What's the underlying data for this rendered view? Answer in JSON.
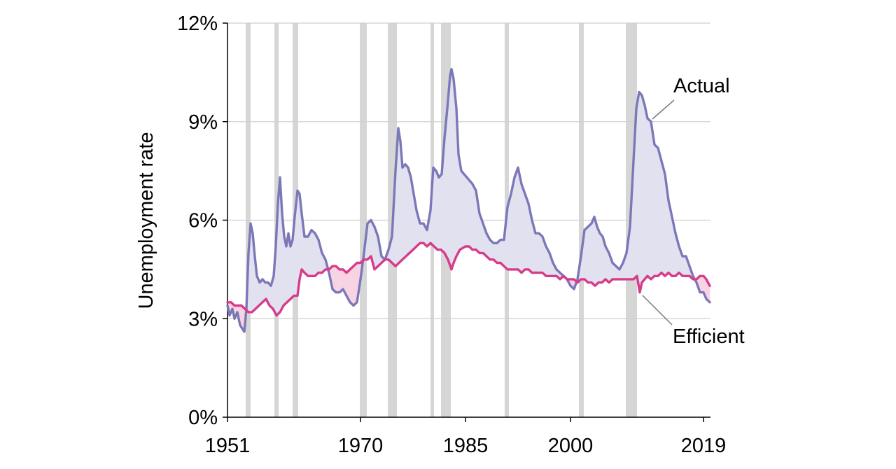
{
  "chart_data": {
    "type": "line",
    "title": "",
    "xlabel": "",
    "ylabel": "Unemployment rate",
    "xlim": [
      1951,
      2020
    ],
    "ylim": [
      0,
      12
    ],
    "x_ticks": [
      1951,
      1970,
      1985,
      2000,
      2019
    ],
    "y_ticks": [
      {
        "value": 0,
        "label": "0%"
      },
      {
        "value": 3,
        "label": "3%"
      },
      {
        "value": 6,
        "label": "6%"
      },
      {
        "value": 9,
        "label": "9%"
      },
      {
        "value": 12,
        "label": "12%"
      }
    ],
    "grid": "horizontal",
    "recessions": [
      [
        1953.6,
        1954.3
      ],
      [
        1957.7,
        1958.3
      ],
      [
        1960.3,
        1961.1
      ],
      [
        1969.9,
        1970.9
      ],
      [
        1973.9,
        1975.2
      ],
      [
        1980.0,
        1980.5
      ],
      [
        1981.5,
        1982.9
      ],
      [
        1990.6,
        1991.2
      ],
      [
        2001.2,
        2001.9
      ],
      [
        2007.9,
        2009.5
      ]
    ],
    "series": [
      {
        "name": "Actual",
        "color": "#7b78b8",
        "points": [
          [
            1951.0,
            3.4
          ],
          [
            1951.3,
            3.1
          ],
          [
            1951.7,
            3.3
          ],
          [
            1952.0,
            3.0
          ],
          [
            1952.4,
            3.2
          ],
          [
            1952.8,
            2.8
          ],
          [
            1953.1,
            2.7
          ],
          [
            1953.4,
            2.6
          ],
          [
            1953.7,
            3.3
          ],
          [
            1954.0,
            5.0
          ],
          [
            1954.3,
            5.9
          ],
          [
            1954.6,
            5.6
          ],
          [
            1954.9,
            4.9
          ],
          [
            1955.2,
            4.3
          ],
          [
            1955.6,
            4.1
          ],
          [
            1956.0,
            4.2
          ],
          [
            1956.4,
            4.1
          ],
          [
            1956.8,
            4.1
          ],
          [
            1957.2,
            4.0
          ],
          [
            1957.6,
            4.3
          ],
          [
            1957.9,
            5.2
          ],
          [
            1958.2,
            6.5
          ],
          [
            1958.5,
            7.3
          ],
          [
            1958.8,
            6.2
          ],
          [
            1959.1,
            5.5
          ],
          [
            1959.4,
            5.2
          ],
          [
            1959.7,
            5.6
          ],
          [
            1960.0,
            5.2
          ],
          [
            1960.3,
            5.4
          ],
          [
            1960.6,
            6.1
          ],
          [
            1961.0,
            6.9
          ],
          [
            1961.3,
            6.8
          ],
          [
            1961.6,
            6.2
          ],
          [
            1962.0,
            5.5
          ],
          [
            1962.5,
            5.5
          ],
          [
            1963.0,
            5.7
          ],
          [
            1963.5,
            5.6
          ],
          [
            1964.0,
            5.4
          ],
          [
            1964.5,
            5.0
          ],
          [
            1965.0,
            4.8
          ],
          [
            1965.5,
            4.4
          ],
          [
            1966.0,
            3.9
          ],
          [
            1966.5,
            3.8
          ],
          [
            1967.0,
            3.8
          ],
          [
            1967.5,
            3.9
          ],
          [
            1968.0,
            3.7
          ],
          [
            1968.5,
            3.5
          ],
          [
            1969.0,
            3.4
          ],
          [
            1969.5,
            3.5
          ],
          [
            1970.0,
            4.2
          ],
          [
            1970.5,
            5.0
          ],
          [
            1971.0,
            5.9
          ],
          [
            1971.5,
            6.0
          ],
          [
            1972.0,
            5.8
          ],
          [
            1972.5,
            5.5
          ],
          [
            1973.0,
            4.9
          ],
          [
            1973.5,
            4.8
          ],
          [
            1974.0,
            5.1
          ],
          [
            1974.5,
            5.5
          ],
          [
            1975.0,
            7.5
          ],
          [
            1975.4,
            8.8
          ],
          [
            1975.7,
            8.4
          ],
          [
            1976.0,
            7.6
          ],
          [
            1976.4,
            7.7
          ],
          [
            1976.8,
            7.6
          ],
          [
            1977.2,
            7.3
          ],
          [
            1977.6,
            6.8
          ],
          [
            1978.0,
            6.3
          ],
          [
            1978.5,
            5.9
          ],
          [
            1979.0,
            5.9
          ],
          [
            1979.5,
            5.7
          ],
          [
            1980.0,
            6.3
          ],
          [
            1980.4,
            7.6
          ],
          [
            1980.8,
            7.5
          ],
          [
            1981.2,
            7.3
          ],
          [
            1981.6,
            7.4
          ],
          [
            1982.0,
            8.5
          ],
          [
            1982.4,
            9.4
          ],
          [
            1982.8,
            10.4
          ],
          [
            1983.0,
            10.6
          ],
          [
            1983.3,
            10.3
          ],
          [
            1983.7,
            9.4
          ],
          [
            1984.0,
            8.0
          ],
          [
            1984.4,
            7.5
          ],
          [
            1984.8,
            7.4
          ],
          [
            1985.2,
            7.3
          ],
          [
            1985.6,
            7.2
          ],
          [
            1986.0,
            7.1
          ],
          [
            1986.5,
            6.9
          ],
          [
            1987.0,
            6.2
          ],
          [
            1987.5,
            5.9
          ],
          [
            1988.0,
            5.6
          ],
          [
            1988.5,
            5.4
          ],
          [
            1989.0,
            5.3
          ],
          [
            1989.5,
            5.3
          ],
          [
            1990.0,
            5.4
          ],
          [
            1990.5,
            5.4
          ],
          [
            1991.0,
            6.4
          ],
          [
            1991.5,
            6.8
          ],
          [
            1992.0,
            7.3
          ],
          [
            1992.5,
            7.6
          ],
          [
            1993.0,
            7.1
          ],
          [
            1993.5,
            6.8
          ],
          [
            1994.0,
            6.5
          ],
          [
            1994.5,
            6.0
          ],
          [
            1995.0,
            5.6
          ],
          [
            1995.5,
            5.6
          ],
          [
            1996.0,
            5.5
          ],
          [
            1996.5,
            5.2
          ],
          [
            1997.0,
            5.0
          ],
          [
            1997.5,
            4.7
          ],
          [
            1998.0,
            4.5
          ],
          [
            1998.5,
            4.4
          ],
          [
            1999.0,
            4.3
          ],
          [
            1999.5,
            4.2
          ],
          [
            2000.0,
            4.0
          ],
          [
            2000.5,
            3.9
          ],
          [
            2001.0,
            4.2
          ],
          [
            2001.5,
            4.9
          ],
          [
            2002.0,
            5.7
          ],
          [
            2002.5,
            5.8
          ],
          [
            2003.0,
            5.9
          ],
          [
            2003.4,
            6.1
          ],
          [
            2003.8,
            5.8
          ],
          [
            2004.2,
            5.6
          ],
          [
            2004.6,
            5.5
          ],
          [
            2005.0,
            5.2
          ],
          [
            2005.5,
            5.0
          ],
          [
            2006.0,
            4.7
          ],
          [
            2006.5,
            4.6
          ],
          [
            2007.0,
            4.5
          ],
          [
            2007.5,
            4.7
          ],
          [
            2008.0,
            5.0
          ],
          [
            2008.5,
            5.8
          ],
          [
            2009.0,
            7.8
          ],
          [
            2009.4,
            9.4
          ],
          [
            2009.8,
            9.9
          ],
          [
            2010.2,
            9.8
          ],
          [
            2010.6,
            9.5
          ],
          [
            2011.0,
            9.1
          ],
          [
            2011.5,
            9.0
          ],
          [
            2012.0,
            8.3
          ],
          [
            2012.5,
            8.2
          ],
          [
            2013.0,
            7.8
          ],
          [
            2013.5,
            7.4
          ],
          [
            2014.0,
            6.6
          ],
          [
            2014.5,
            6.1
          ],
          [
            2015.0,
            5.6
          ],
          [
            2015.5,
            5.2
          ],
          [
            2016.0,
            4.9
          ],
          [
            2016.5,
            4.9
          ],
          [
            2017.0,
            4.6
          ],
          [
            2017.5,
            4.3
          ],
          [
            2018.0,
            4.1
          ],
          [
            2018.5,
            3.8
          ],
          [
            2019.0,
            3.8
          ],
          [
            2019.4,
            3.6
          ],
          [
            2019.9,
            3.5
          ]
        ]
      },
      {
        "name": "Efficient",
        "color": "#d63c8a",
        "points": [
          [
            1951.0,
            3.5
          ],
          [
            1951.5,
            3.5
          ],
          [
            1952.0,
            3.4
          ],
          [
            1952.5,
            3.4
          ],
          [
            1953.0,
            3.4
          ],
          [
            1953.5,
            3.3
          ],
          [
            1954.0,
            3.2
          ],
          [
            1954.5,
            3.2
          ],
          [
            1955.0,
            3.3
          ],
          [
            1955.5,
            3.4
          ],
          [
            1956.0,
            3.5
          ],
          [
            1956.5,
            3.6
          ],
          [
            1957.0,
            3.4
          ],
          [
            1957.5,
            3.3
          ],
          [
            1958.0,
            3.1
          ],
          [
            1958.5,
            3.2
          ],
          [
            1959.0,
            3.4
          ],
          [
            1959.5,
            3.5
          ],
          [
            1960.0,
            3.6
          ],
          [
            1960.5,
            3.7
          ],
          [
            1961.0,
            3.7
          ],
          [
            1961.3,
            4.2
          ],
          [
            1961.6,
            4.5
          ],
          [
            1962.0,
            4.4
          ],
          [
            1962.5,
            4.3
          ],
          [
            1963.0,
            4.3
          ],
          [
            1963.5,
            4.3
          ],
          [
            1964.0,
            4.4
          ],
          [
            1964.5,
            4.4
          ],
          [
            1965.0,
            4.5
          ],
          [
            1965.5,
            4.5
          ],
          [
            1966.0,
            4.6
          ],
          [
            1966.5,
            4.6
          ],
          [
            1967.0,
            4.5
          ],
          [
            1967.5,
            4.5
          ],
          [
            1968.0,
            4.4
          ],
          [
            1968.5,
            4.5
          ],
          [
            1969.0,
            4.6
          ],
          [
            1969.5,
            4.7
          ],
          [
            1970.0,
            4.7
          ],
          [
            1970.5,
            4.8
          ],
          [
            1971.0,
            4.8
          ],
          [
            1971.5,
            4.9
          ],
          [
            1972.0,
            4.5
          ],
          [
            1972.5,
            4.6
          ],
          [
            1973.0,
            4.7
          ],
          [
            1973.5,
            4.8
          ],
          [
            1974.0,
            4.8
          ],
          [
            1974.5,
            4.7
          ],
          [
            1975.0,
            4.6
          ],
          [
            1975.5,
            4.7
          ],
          [
            1976.0,
            4.8
          ],
          [
            1976.5,
            4.9
          ],
          [
            1977.0,
            5.0
          ],
          [
            1977.5,
            5.1
          ],
          [
            1978.0,
            5.2
          ],
          [
            1978.5,
            5.3
          ],
          [
            1979.0,
            5.3
          ],
          [
            1979.5,
            5.2
          ],
          [
            1980.0,
            5.3
          ],
          [
            1980.5,
            5.2
          ],
          [
            1981.0,
            5.1
          ],
          [
            1981.5,
            5.1
          ],
          [
            1982.0,
            5.0
          ],
          [
            1982.5,
            4.8
          ],
          [
            1983.0,
            4.5
          ],
          [
            1983.3,
            4.7
          ],
          [
            1983.7,
            4.9
          ],
          [
            1984.2,
            5.1
          ],
          [
            1985.0,
            5.2
          ],
          [
            1985.5,
            5.2
          ],
          [
            1986.0,
            5.1
          ],
          [
            1986.5,
            5.1
          ],
          [
            1987.0,
            5.0
          ],
          [
            1987.5,
            5.0
          ],
          [
            1988.0,
            4.9
          ],
          [
            1988.5,
            4.8
          ],
          [
            1989.0,
            4.8
          ],
          [
            1989.5,
            4.7
          ],
          [
            1990.0,
            4.7
          ],
          [
            1990.5,
            4.6
          ],
          [
            1991.0,
            4.5
          ],
          [
            1991.5,
            4.5
          ],
          [
            1992.0,
            4.5
          ],
          [
            1992.5,
            4.5
          ],
          [
            1993.0,
            4.4
          ],
          [
            1993.5,
            4.5
          ],
          [
            1994.0,
            4.5
          ],
          [
            1994.5,
            4.4
          ],
          [
            1995.0,
            4.4
          ],
          [
            1995.5,
            4.4
          ],
          [
            1996.0,
            4.4
          ],
          [
            1996.5,
            4.3
          ],
          [
            1997.0,
            4.3
          ],
          [
            1997.5,
            4.3
          ],
          [
            1998.0,
            4.3
          ],
          [
            1998.5,
            4.2
          ],
          [
            1999.0,
            4.3
          ],
          [
            1999.5,
            4.2
          ],
          [
            2000.0,
            4.2
          ],
          [
            2000.5,
            4.2
          ],
          [
            2001.0,
            4.1
          ],
          [
            2001.5,
            4.2
          ],
          [
            2002.0,
            4.2
          ],
          [
            2002.5,
            4.1
          ],
          [
            2003.0,
            4.1
          ],
          [
            2003.5,
            4.0
          ],
          [
            2004.0,
            4.1
          ],
          [
            2004.5,
            4.1
          ],
          [
            2005.0,
            4.2
          ],
          [
            2005.5,
            4.1
          ],
          [
            2006.0,
            4.2
          ],
          [
            2006.5,
            4.2
          ],
          [
            2007.0,
            4.2
          ],
          [
            2007.5,
            4.2
          ],
          [
            2008.0,
            4.2
          ],
          [
            2008.5,
            4.2
          ],
          [
            2009.0,
            4.2
          ],
          [
            2009.5,
            4.3
          ],
          [
            2009.9,
            3.8
          ],
          [
            2010.2,
            4.1
          ],
          [
            2010.6,
            4.2
          ],
          [
            2011.0,
            4.3
          ],
          [
            2011.5,
            4.2
          ],
          [
            2012.0,
            4.3
          ],
          [
            2012.5,
            4.3
          ],
          [
            2013.0,
            4.4
          ],
          [
            2013.5,
            4.3
          ],
          [
            2014.0,
            4.4
          ],
          [
            2014.5,
            4.3
          ],
          [
            2015.0,
            4.3
          ],
          [
            2015.5,
            4.4
          ],
          [
            2016.0,
            4.3
          ],
          [
            2016.5,
            4.3
          ],
          [
            2017.0,
            4.3
          ],
          [
            2017.5,
            4.2
          ],
          [
            2018.0,
            4.2
          ],
          [
            2018.5,
            4.3
          ],
          [
            2019.0,
            4.3
          ],
          [
            2019.4,
            4.2
          ],
          [
            2019.9,
            4.0
          ]
        ]
      }
    ],
    "fill_colors": {
      "actual_above": "#e2e1f0",
      "efficient_above": "#f7d3e4"
    },
    "recession_color": "#d6d6d6",
    "grid_color": "#cfcfcf"
  }
}
